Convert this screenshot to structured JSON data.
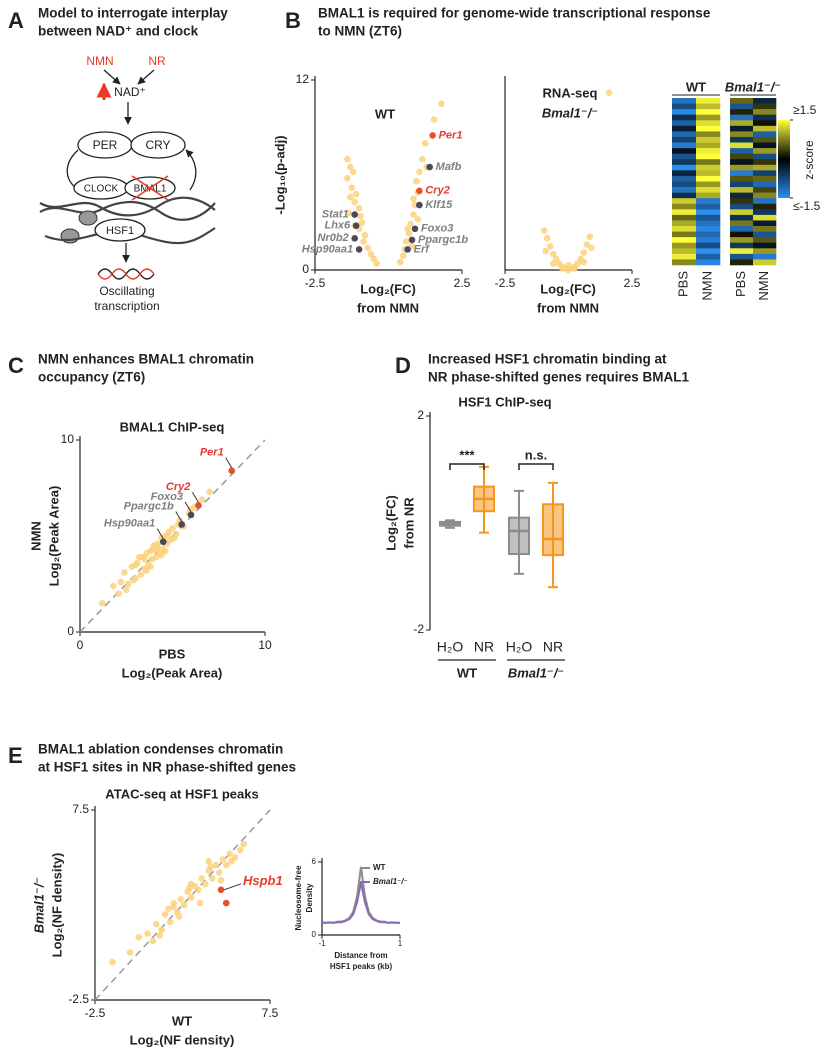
{
  "panels": [
    {
      "label": "A",
      "title": [
        "Model to interrogate interplay",
        "between NAD⁺ and clock"
      ]
    },
    {
      "label": "B",
      "title": [
        "BMAL1 is required for genome-wide transcriptional response",
        "to NMN (ZT6)"
      ]
    },
    {
      "label": "C",
      "title": [
        "NMN enhances BMAL1 chromatin",
        "occupancy (ZT6)"
      ]
    },
    {
      "label": "D",
      "title": [
        "Increased HSF1 chromatin binding at",
        "NR phase-shifted genes requires BMAL1"
      ]
    },
    {
      "label": "E",
      "title": [
        "BMAL1 ablation condenses chromatin",
        "at HSF1 sites in NR phase-shifted genes"
      ]
    }
  ],
  "diagram": {
    "nmn": "NMN",
    "nr": "NR",
    "nad": "NAD⁺",
    "per": "PER",
    "cry": "CRY",
    "clock": "CLOCK",
    "bmal1": "BMAL1",
    "hsf1": "HSF1",
    "output": [
      "Oscillating",
      "transcription"
    ]
  },
  "chart_data": [
    {
      "type": "scatter",
      "title": "WT",
      "color": "#fcd17d",
      "x": [
        -1.4,
        -1.3,
        -1.4,
        -1.2,
        -1.25,
        -1.1,
        -1.15,
        -1.0,
        -0.95,
        -0.9,
        -1.0,
        -0.8,
        -0.85,
        -0.7,
        -0.6,
        -0.5,
        -0.4,
        -1.3,
        -1.35,
        -1.15,
        0.4,
        0.5,
        0.55,
        0.6,
        0.7,
        0.75,
        0.85,
        0.9,
        1.0,
        0.95,
        1.05,
        1.15,
        1.25,
        1.55,
        1.8,
        0.8,
        0.65,
        0.85,
        1.0,
        1.3
      ],
      "y": [
        7,
        6.5,
        5.8,
        6.2,
        5.2,
        4.8,
        4.3,
        3.9,
        3.4,
        3.0,
        2.6,
        2.2,
        1.8,
        1.4,
        1.0,
        0.7,
        0.4,
        4.6,
        3.6,
        2.8,
        0.5,
        0.9,
        1.3,
        1.8,
        2.3,
        2.9,
        3.5,
        4.1,
        4.9,
        5.6,
        6.2,
        7.0,
        8.0,
        9.5,
        10.5,
        1.5,
        2.6,
        4.5,
        3.2,
        6.5
      ],
      "highlights": [
        {
          "label": "Per1",
          "x": 1.5,
          "y": 8.5,
          "color": "#e8502b",
          "label_color": "#e8392b"
        },
        {
          "label": "Mafb",
          "x": 1.4,
          "y": 6.5,
          "color": "#4a4a5a",
          "label_color": "#7f7f7f"
        },
        {
          "label": "Cry2",
          "x": 1.05,
          "y": 5.0,
          "color": "#e8502b",
          "label_color": "#e8392b"
        },
        {
          "label": "Klf15",
          "x": 1.05,
          "y": 4.1,
          "color": "#4a4a5a",
          "label_color": "#7f7f7f"
        },
        {
          "label": "Foxo3",
          "x": 0.9,
          "y": 2.6,
          "color": "#4a4a5a",
          "label_color": "#7f7f7f"
        },
        {
          "label": "Ppargc1b",
          "x": 0.8,
          "y": 1.9,
          "color": "#4a4a5a",
          "label_color": "#7f7f7f"
        },
        {
          "label": "Erf",
          "x": 0.65,
          "y": 1.3,
          "color": "#4a4a5a",
          "label_color": "#7f7f7f"
        },
        {
          "label": "Stat1",
          "x": -1.15,
          "y": 3.5,
          "color": "#4a4a5a",
          "label_color": "#7f7f7f"
        },
        {
          "label": "Lhx6",
          "x": -1.1,
          "y": 2.8,
          "color": "#4a4a5a",
          "label_color": "#7f7f7f"
        },
        {
          "label": "Nr0b2",
          "x": -1.15,
          "y": 2.0,
          "color": "#4a4a5a",
          "label_color": "#7f7f7f"
        },
        {
          "label": "Hsp90aa1",
          "x": -1.0,
          "y": 1.3,
          "color": "#4a4a5a",
          "label_color": "#7f7f7f"
        }
      ],
      "xlim": [
        -2.5,
        2.5
      ],
      "xticks": [
        -2.5,
        2.5
      ],
      "ylim": [
        0,
        12
      ],
      "yticks": [
        0,
        12
      ],
      "xlabel": [
        "Log₂(FC)",
        "from NMN"
      ],
      "ylabel": [
        "-Log₁₀(p-adj)"
      ]
    },
    {
      "type": "scatter",
      "subtitle": "RNA-seq",
      "title": "Bmal1⁻/⁻",
      "color": "#fcd17d",
      "x": [
        -0.96,
        -0.84,
        -0.72,
        -0.6,
        -0.48,
        -0.36,
        -0.24,
        -0.12,
        0,
        0.12,
        0.24,
        0.36,
        0.48,
        0.6,
        0.72,
        0.84,
        -0.9,
        0.9,
        -0.6,
        0.6,
        0,
        -0.24,
        0.24,
        1.6
      ],
      "y": [
        2.5,
        2,
        1.5,
        1,
        0.7,
        0.4,
        0.2,
        0.1,
        0,
        0.1,
        0.2,
        0.4,
        0.7,
        1.1,
        1.6,
        2.1,
        1.2,
        1.4,
        0.4,
        0.5,
        0.3,
        0.1,
        0.1,
        11.2
      ],
      "xlim": [
        -2.5,
        2.5
      ],
      "xticks": [
        -2.5,
        2.5
      ],
      "ylim": [
        0,
        12
      ],
      "xlabel": [
        "Log₂(FC)",
        "from NMN"
      ]
    },
    {
      "type": "heatmap",
      "title": "WT",
      "columns": [
        "PBS",
        "NMN"
      ],
      "values": [
        [
          -1.2,
          1.4
        ],
        [
          -0.8,
          1.1
        ],
        [
          -1.4,
          1.5
        ],
        [
          -0.5,
          0.9
        ],
        [
          -1.0,
          1.3
        ],
        [
          -0.3,
          1.5
        ],
        [
          -1.1,
          0.8
        ],
        [
          -0.7,
          1.2
        ],
        [
          -1.3,
          1.0
        ],
        [
          -0.2,
          1.4
        ],
        [
          -0.9,
          1.5
        ],
        [
          -0.6,
          0.7
        ],
        [
          -1.5,
          1.2
        ],
        [
          -0.4,
          1.1
        ],
        [
          -1.0,
          1.5
        ],
        [
          -0.8,
          0.9
        ],
        [
          -1.2,
          1.3
        ],
        [
          -0.5,
          1.0
        ],
        [
          1.2,
          -1.3
        ],
        [
          0.8,
          -1.0
        ],
        [
          1.4,
          -1.5
        ],
        [
          0.6,
          -0.9
        ],
        [
          1.0,
          -1.2
        ],
        [
          1.3,
          -1.4
        ],
        [
          0.7,
          -1.1
        ],
        [
          1.5,
          -1.3
        ],
        [
          0.9,
          -0.8
        ],
        [
          1.1,
          -1.5
        ],
        [
          1.4,
          -1.0
        ],
        [
          0.8,
          -1.4
        ]
      ],
      "colormap": [
        "#2b8ef0",
        "#000000",
        "#ffff3c"
      ],
      "colorbar": {
        "label": "z-score",
        "ticks": [
          {
            "value": 1.5,
            "label": "≥1.5"
          },
          {
            "value": -1.5,
            "label": "≤-1.5"
          }
        ]
      }
    },
    {
      "type": "heatmap",
      "title": "Bmal1⁻/⁻",
      "columns": [
        "PBS",
        "NMN"
      ],
      "values": [
        [
          0.6,
          -0.4
        ],
        [
          -0.9,
          0.3
        ],
        [
          0.2,
          0.8
        ],
        [
          -1.2,
          -0.5
        ],
        [
          1.0,
          0.1
        ],
        [
          -0.3,
          1.1
        ],
        [
          0.8,
          -1.0
        ],
        [
          -0.6,
          0.5
        ],
        [
          1.3,
          -0.2
        ],
        [
          -1.0,
          0.9
        ],
        [
          0.4,
          -0.8
        ],
        [
          -0.2,
          0.3
        ],
        [
          0.9,
          1.0
        ],
        [
          -1.3,
          -0.7
        ],
        [
          0.5,
          0.6
        ],
        [
          -0.7,
          -1.1
        ],
        [
          1.1,
          0.4
        ],
        [
          -0.4,
          0.8
        ],
        [
          0.3,
          -1.2
        ],
        [
          -0.8,
          0.2
        ],
        [
          1.2,
          -0.6
        ],
        [
          -0.5,
          1.3
        ],
        [
          0.7,
          -0.3
        ],
        [
          -1.1,
          0.7
        ],
        [
          0.1,
          -0.9
        ],
        [
          0.9,
          0.5
        ],
        [
          -0.6,
          -0.2
        ],
        [
          1.4,
          0.9
        ],
        [
          -0.9,
          -1.3
        ],
        [
          0.2,
          1.2
        ]
      ],
      "colormap": [
        "#2b8ef0",
        "#000000",
        "#ffff3c"
      ]
    },
    {
      "type": "scatter",
      "title": "BMAL1 ChIP-seq",
      "color": "#fcd17d",
      "diagonal": true,
      "x": [
        1.2,
        1.8,
        2.1,
        2.4,
        2.6,
        2.8,
        3.0,
        3.1,
        3.3,
        3.4,
        3.5,
        3.6,
        3.7,
        3.8,
        3.9,
        4.0,
        4.1,
        4.2,
        4.3,
        4.4,
        4.5,
        4.6,
        4.7,
        4.8,
        4.9,
        5.0,
        5.2,
        5.4,
        5.6,
        5.9,
        6.2,
        6.6,
        7.0,
        2.2,
        2.9,
        3.2,
        3.5,
        3.8,
        4.1,
        4.4,
        4.7,
        5.1,
        3.0,
        3.6,
        4.2,
        2.5,
        3.9,
        4.6,
        5.3,
        6.0
      ],
      "y": [
        1.5,
        2.4,
        2.0,
        3.1,
        2.5,
        3.4,
        2.8,
        3.6,
        3.0,
        3.9,
        3.3,
        4.1,
        3.5,
        4.2,
        3.8,
        4.5,
        3.9,
        4.6,
        4.1,
        4.9,
        4.3,
        5.0,
        4.6,
        5.2,
        4.8,
        5.4,
        5.1,
        5.8,
        5.5,
        6.2,
        6.5,
        6.9,
        7.3,
        2.6,
        2.7,
        3.9,
        3.8,
        3.4,
        4.3,
        4.0,
        5.0,
        4.9,
        3.5,
        3.2,
        4.4,
        2.2,
        4.3,
        4.2,
        5.6,
        6.4
      ],
      "highlights": [
        {
          "label": "Per1",
          "x": 8.2,
          "y": 8.4,
          "color": "#e8502b",
          "label_color": "#e8392b"
        },
        {
          "label": "Cry2",
          "x": 6.4,
          "y": 6.6,
          "color": "#e8502b",
          "label_color": "#e8392b"
        },
        {
          "label": "Foxo3",
          "x": 6.0,
          "y": 6.1,
          "color": "#4a4a5a",
          "label_color": "#7f7f7f"
        },
        {
          "label": "Ppargc1b",
          "x": 5.5,
          "y": 5.6,
          "color": "#4a4a5a",
          "label_color": "#7f7f7f"
        },
        {
          "label": "Hsp90aa1",
          "x": 4.5,
          "y": 4.7,
          "color": "#4a4a5a",
          "label_color": "#7f7f7f"
        }
      ],
      "xlim": [
        0,
        10
      ],
      "xticks": [
        0,
        10
      ],
      "ylim": [
        0,
        10
      ],
      "yticks": [
        0,
        10
      ],
      "xlabel": [
        "PBS",
        "Log₂(Peak Area)"
      ],
      "ylabel": [
        "NMN",
        "Log₂(Peak Area)"
      ]
    },
    {
      "type": "box",
      "title": "HSF1 ChIP-seq",
      "categories": [
        "H₂O",
        "NR",
        "H₂O",
        "NR"
      ],
      "boxes": [
        {
          "min": -0.09,
          "q1": -0.05,
          "median": -0.01,
          "q3": 0.02,
          "max": 0.05,
          "color": "#8c8c8c"
        },
        {
          "min": -0.18,
          "q1": 0.22,
          "median": 0.45,
          "q3": 0.68,
          "max": 1.05,
          "color": "#f5961e"
        },
        {
          "min": -0.95,
          "q1": -0.58,
          "median": -0.15,
          "q3": 0.1,
          "max": 0.6,
          "color": "#8c8c8c"
        },
        {
          "min": -1.2,
          "q1": -0.6,
          "median": -0.3,
          "q3": 0.35,
          "max": 0.75,
          "color": "#f5961e"
        }
      ],
      "groups": [
        "WT",
        "Bmal1⁻/⁻"
      ],
      "significance": [
        "***",
        "n.s."
      ],
      "ylim": [
        -2,
        2
      ],
      "yticks": [
        -2,
        2
      ],
      "ylabel": [
        "Log₂(FC)",
        "from NR"
      ]
    },
    {
      "type": "scatter",
      "title": "ATAC-seq at HSF1 peaks",
      "color": "#fcd17d",
      "diagonal": true,
      "x": [
        -1.5,
        -0.5,
        0,
        0.5,
        0.8,
        1.0,
        1.3,
        1.5,
        1.8,
        2.0,
        2.2,
        2.4,
        2.6,
        2.8,
        3.0,
        3.2,
        3.4,
        3.6,
        3.8,
        4.0,
        4.2,
        4.4,
        4.6,
        4.8,
        5.0,
        5.2,
        5.5,
        5.8,
        6.0,
        1.2,
        1.7,
        2.3,
        2.9,
        3.5,
        4.1,
        4.7,
        5.3,
        2.0,
        3.0,
        4.0
      ],
      "y": [
        -0.5,
        0.0,
        0.8,
        1.0,
        0.6,
        1.5,
        1.2,
        2.0,
        1.6,
        2.4,
        2.1,
        2.8,
        2.5,
        3.2,
        2.9,
        3.5,
        3.3,
        3.9,
        3.6,
        4.3,
        3.9,
        4.6,
        4.2,
        4.9,
        4.6,
        5.2,
        5.0,
        5.4,
        5.7,
        0.9,
        2.3,
        1.9,
        3.4,
        2.6,
        4.5,
        3.8,
        4.8,
        2.6,
        3.6,
        4.8
      ],
      "highlights": [
        {
          "label": "Hspb1",
          "x": 4.7,
          "y": 3.3,
          "color": "#e8502b",
          "label_color": "#e8392b"
        },
        {
          "x": 5.0,
          "y": 2.6,
          "color": "#e8502b"
        }
      ],
      "xlim": [
        -2.5,
        7.5
      ],
      "xticks": [
        -2.5,
        7.5
      ],
      "ylim": [
        -2.5,
        7.5
      ],
      "yticks": [
        -2.5,
        7.5
      ],
      "xlabel": [
        "WT",
        "Log₂(NF density)"
      ],
      "ylabel": [
        "Bmal1⁻/⁻",
        "Log₂(NF density)"
      ]
    },
    {
      "type": "line",
      "x": [
        -1,
        -0.9,
        -0.8,
        -0.7,
        -0.6,
        -0.5,
        -0.4,
        -0.3,
        -0.2,
        -0.1,
        0,
        0.1,
        0.2,
        0.3,
        0.4,
        0.5,
        0.6,
        0.7,
        0.8,
        0.9,
        1
      ],
      "series": [
        {
          "name": "WT",
          "color": "#8c8c8c",
          "values": [
            1,
            1,
            1.05,
            1,
            1.1,
            1.1,
            1.2,
            1.4,
            1.9,
            3.2,
            5.6,
            3.2,
            1.9,
            1.4,
            1.2,
            1.1,
            1.1,
            1,
            1.05,
            1,
            1
          ]
        },
        {
          "name": "Bmal1⁻/⁻",
          "color": "#8a6bb8",
          "values": [
            1,
            1,
            1,
            1,
            1.05,
            1.05,
            1.15,
            1.3,
            1.7,
            2.7,
            4.3,
            2.7,
            1.7,
            1.3,
            1.15,
            1.05,
            1.05,
            1,
            1,
            1,
            1
          ]
        }
      ],
      "xlim": [
        -1,
        1
      ],
      "xticks": [
        -1,
        1
      ],
      "ylim": [
        0,
        6
      ],
      "yticks": [
        0,
        6
      ],
      "xlabel": [
        "Distance from",
        "HSF1 peaks (kb)"
      ],
      "ylabel": [
        "Nucleosome-free",
        "Density"
      ],
      "legend": "top-right"
    }
  ]
}
